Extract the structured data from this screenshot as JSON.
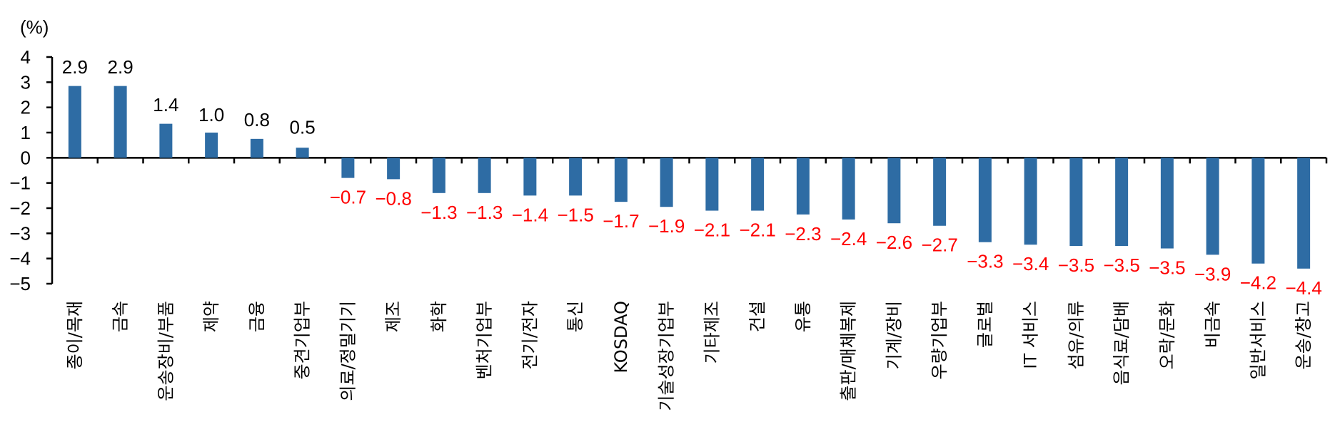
{
  "chart_data": {
    "type": "bar",
    "unit_label": "(%)",
    "categories": [
      "종이/목재",
      "금속",
      "운송장비/부품",
      "제약",
      "금융",
      "중견기업부",
      "의료/정밀기기",
      "제조",
      "화학",
      "벤처기업부",
      "전기/전자",
      "통신",
      "KOSDAQ",
      "기술성장기업부",
      "기타제조",
      "건설",
      "유통",
      "출판/매체복제",
      "기계/장비",
      "우량기업부",
      "글로벌",
      "IT 서비스",
      "섬유/의류",
      "음식료/담배",
      "오락/문화",
      "비금속",
      "일반서비스",
      "운송/창고"
    ],
    "values": [
      2.9,
      2.9,
      1.4,
      1.0,
      0.8,
      0.5,
      -0.7,
      -0.8,
      -1.3,
      -1.3,
      -1.4,
      -1.5,
      -1.7,
      -1.9,
      -2.1,
      -2.1,
      -2.3,
      -2.4,
      -2.6,
      -2.7,
      -3.3,
      -3.4,
      -3.5,
      -3.5,
      -3.5,
      -3.9,
      -4.2,
      -4.4
    ],
    "bar_values": [
      2.85,
      2.85,
      1.35,
      1.0,
      0.75,
      0.4,
      -0.8,
      -0.85,
      -1.4,
      -1.4,
      -1.5,
      -1.5,
      -1.75,
      -1.95,
      -2.1,
      -2.1,
      -2.25,
      -2.45,
      -2.6,
      -2.7,
      -3.35,
      -3.45,
      -3.5,
      -3.5,
      -3.6,
      -3.85,
      -4.2,
      -4.4
    ],
    "value_labels": [
      "2.9",
      "2.9",
      "1.4",
      "1.0",
      "0.8",
      "0.5",
      "−0.7",
      "−0.8",
      "−1.3",
      "−1.3",
      "−1.4",
      "−1.5",
      "−1.7",
      "−1.9",
      "−2.1",
      "−2.1",
      "−2.3",
      "−2.4",
      "−2.6",
      "−2.7",
      "−3.3",
      "−3.4",
      "−3.5",
      "−3.5",
      "−3.5",
      "−3.9",
      "−4.2",
      "−4.4"
    ],
    "y_ticks": [
      4,
      3,
      2,
      1,
      0,
      -1,
      -2,
      -3,
      -4,
      -5
    ],
    "y_tick_labels": [
      "4",
      "3",
      "2",
      "1",
      "0",
      "−1",
      "−2",
      "−3",
      "−4",
      "−5"
    ],
    "ylim": [
      -5,
      4
    ],
    "title": "",
    "xlabel": "",
    "ylabel": "",
    "grid": false,
    "legend": "none",
    "colors": {
      "bar": "#2e6ca4",
      "positive_label": "#000000",
      "negative_label": "#ff0000"
    }
  }
}
